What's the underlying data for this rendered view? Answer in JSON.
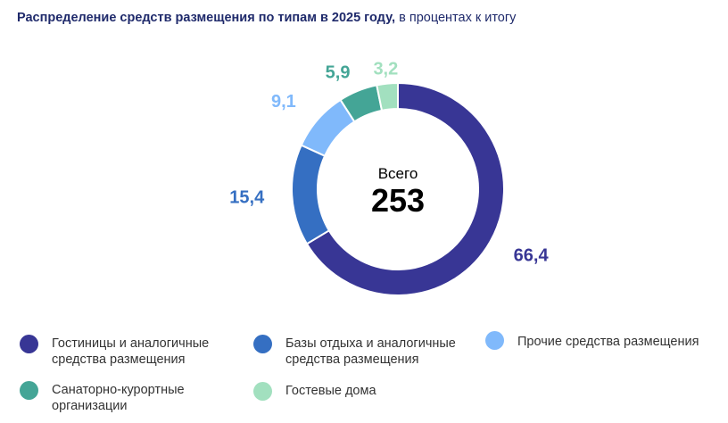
{
  "title": {
    "bold": "Распределение средств размещения по типам в 2025 году,",
    "normal": " в процентах к итогу"
  },
  "center": {
    "caption": "Всего",
    "total": "253"
  },
  "chart_data": {
    "type": "pie",
    "variant": "donut",
    "title": "Распределение средств размещения по типам в 2025 году, в процентах к итогу",
    "center_caption": "Всего",
    "center_total": 253,
    "slices": [
      {
        "label": "Гостиницы и аналогичные средства размещения",
        "value": 66.4,
        "display": "66,4",
        "color": "#383695"
      },
      {
        "label": "Базы отдыха и аналогичные средства размещения",
        "value": 15.4,
        "display": "15,4",
        "color": "#356fc2"
      },
      {
        "label": "Прочие средства размещения",
        "value": 9.1,
        "display": "9,1",
        "color": "#80b9fb"
      },
      {
        "label": "Санаторно-курортные организации",
        "value": 5.9,
        "display": "5,9",
        "color": "#44a596"
      },
      {
        "label": "Гостевые дома",
        "value": 3.2,
        "display": "3,2",
        "color": "#a2e0bf"
      }
    ],
    "legend_position": "bottom"
  },
  "legend": [
    {
      "lines": [
        "Гостиницы и аналогичные",
        "средства размещения"
      ],
      "color": "#383695"
    },
    {
      "lines": [
        "Базы отдыха и аналогичные",
        "средства размещения"
      ],
      "color": "#356fc2"
    },
    {
      "lines": [
        "Прочие средства размещения"
      ],
      "color": "#80b9fb"
    },
    {
      "lines": [
        "Санаторно-курортные",
        "организации"
      ],
      "color": "#44a596"
    },
    {
      "lines": [
        "Гостевые дома"
      ],
      "color": "#a2e0bf"
    }
  ]
}
